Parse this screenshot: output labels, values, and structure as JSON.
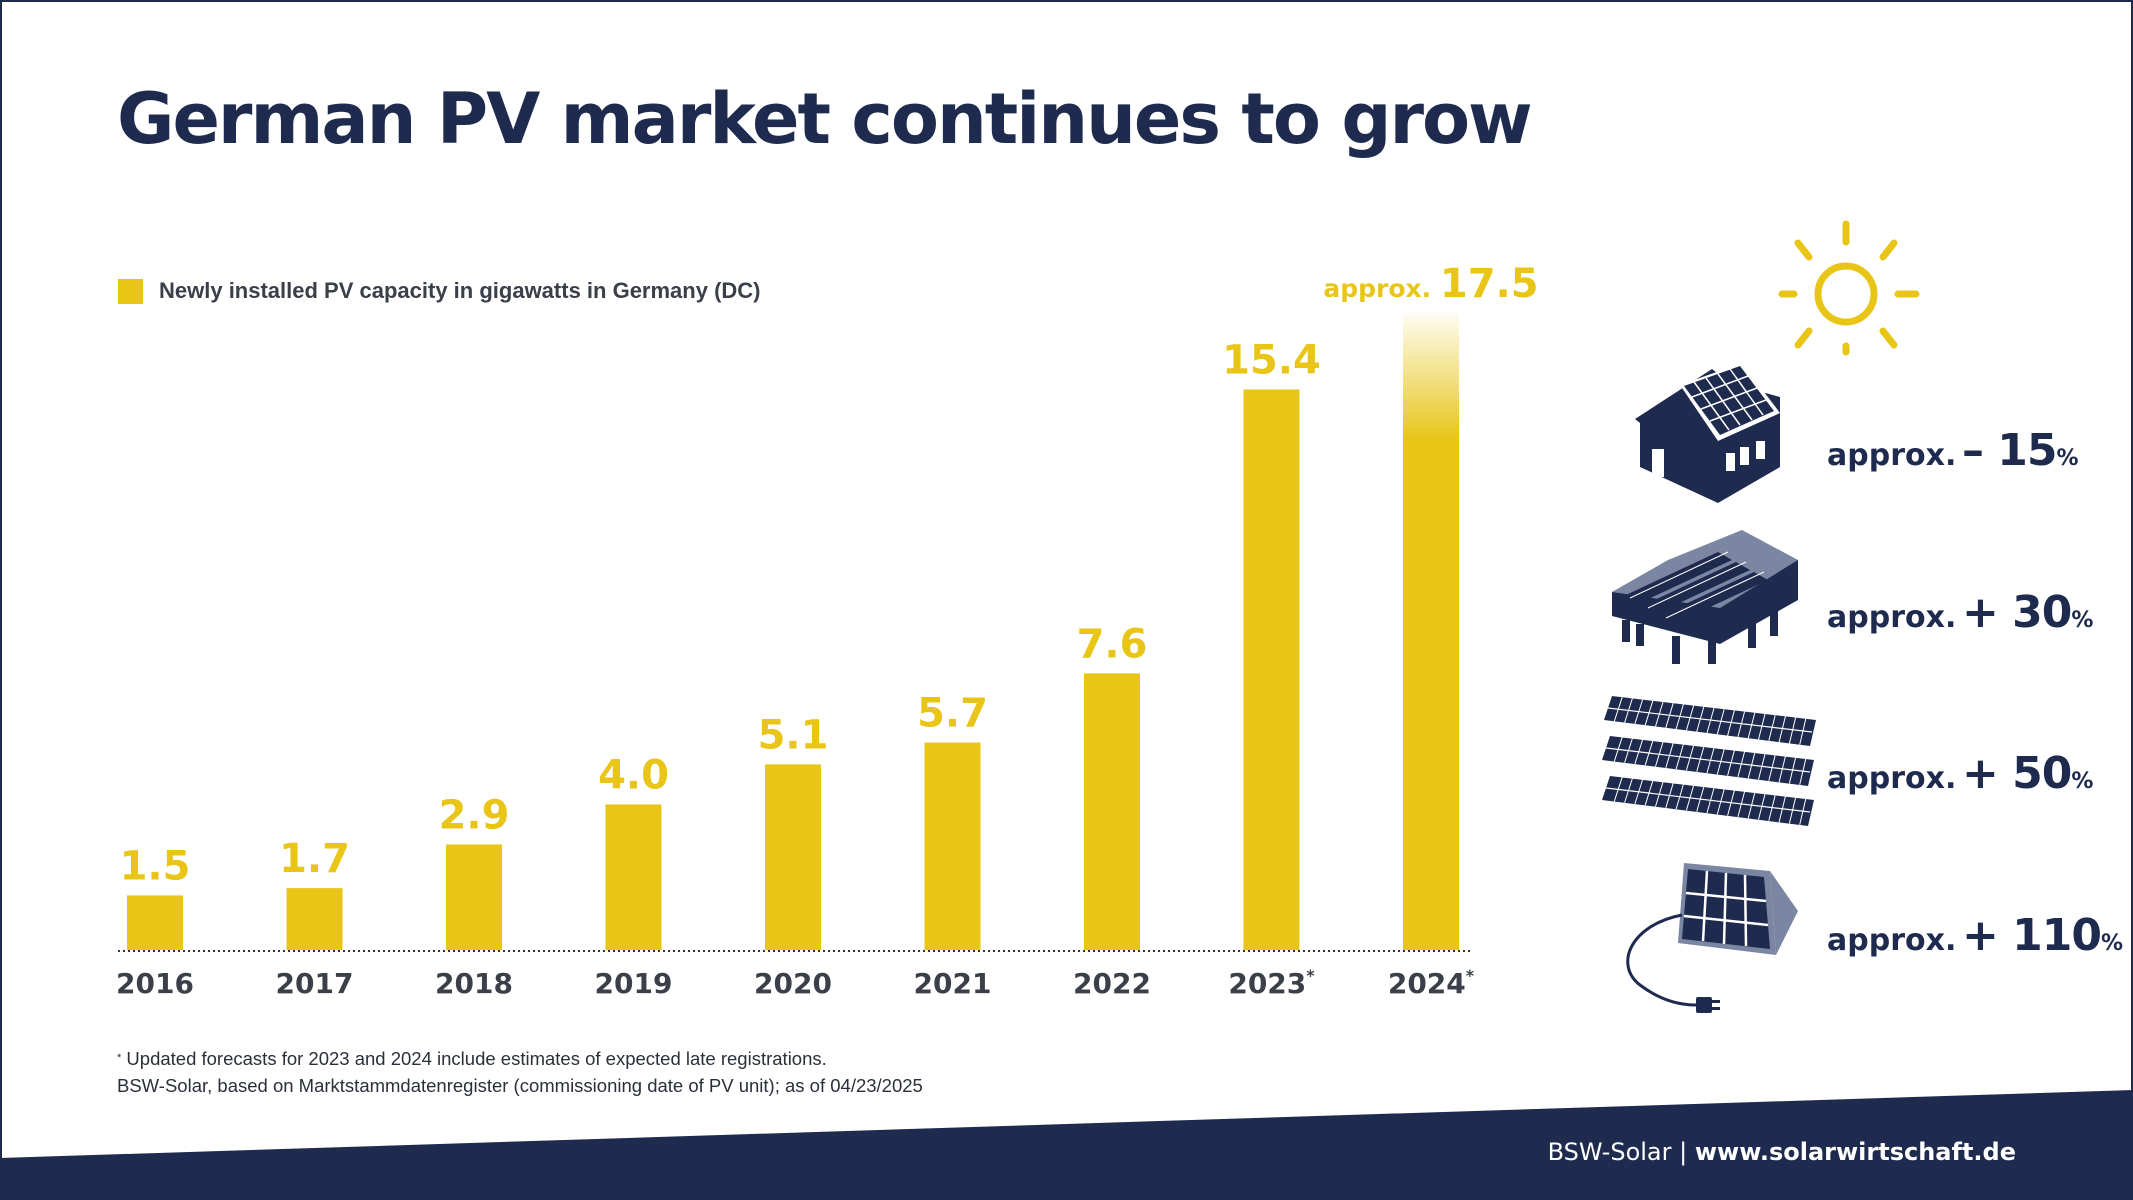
{
  "page": {
    "title": "German PV market continues to grow"
  },
  "legend": {
    "label": "Newly installed PV capacity in gigawatts in Germany (DC)"
  },
  "chart_data": {
    "type": "bar",
    "title": "German PV market continues to grow",
    "categories": [
      "2016",
      "2017",
      "2018",
      "2019",
      "2020",
      "2021",
      "2022",
      "2023",
      "2024"
    ],
    "category_markers": [
      "",
      "",
      "",
      "",
      "",
      "",
      "",
      "*",
      "*"
    ],
    "series": [
      {
        "name": "Newly installed PV capacity in gigawatts in Germany (DC)",
        "values": [
          1.5,
          1.7,
          2.9,
          4.0,
          5.1,
          5.7,
          7.6,
          15.4,
          17.5
        ]
      }
    ],
    "value_labels": [
      "1.5",
      "1.7",
      "2.9",
      "4.0",
      "5.1",
      "5.7",
      "7.6",
      "15.4",
      "17.5"
    ],
    "value_label_prefixes": [
      "",
      "",
      "",
      "",
      "",
      "",
      "",
      "",
      "approx."
    ],
    "faded_bars": [
      false,
      false,
      false,
      false,
      false,
      false,
      false,
      false,
      true
    ],
    "ylim": [
      0,
      17.5
    ],
    "xlabel": "",
    "ylabel": "",
    "grid": false,
    "legend_position": "top-left",
    "colors": {
      "bar": "#e8c516",
      "axis_text": "#3b3f4a",
      "baseline": "#333333"
    }
  },
  "segments": [
    {
      "icon": "house-rooftop-icon",
      "prefix": "approx.",
      "value": "– 15",
      "unit": "%"
    },
    {
      "icon": "commercial-roof-icon",
      "prefix": "approx.",
      "value": "+ 30",
      "unit": "%"
    },
    {
      "icon": "ground-mounted-icon",
      "prefix": "approx.",
      "value": "+ 50",
      "unit": "%"
    },
    {
      "icon": "plug-in-solar-icon",
      "prefix": "approx.",
      "value": "+ 110",
      "unit": "%"
    }
  ],
  "footnote": {
    "marker": "*",
    "line1": "Updated forecasts for 2023 and 2024 include estimates of expected late registrations.",
    "line2": "BSW-Solar, based on Marktstammdatenregister (commissioning date of PV unit); as of 04/23/2025"
  },
  "footer": {
    "org": "BSW-Solar",
    "separator": "|",
    "url": "www.solarwirtschaft.de"
  },
  "colors": {
    "navy": "#1e2b4f",
    "yellow": "#e8c516",
    "white": "#ffffff"
  }
}
